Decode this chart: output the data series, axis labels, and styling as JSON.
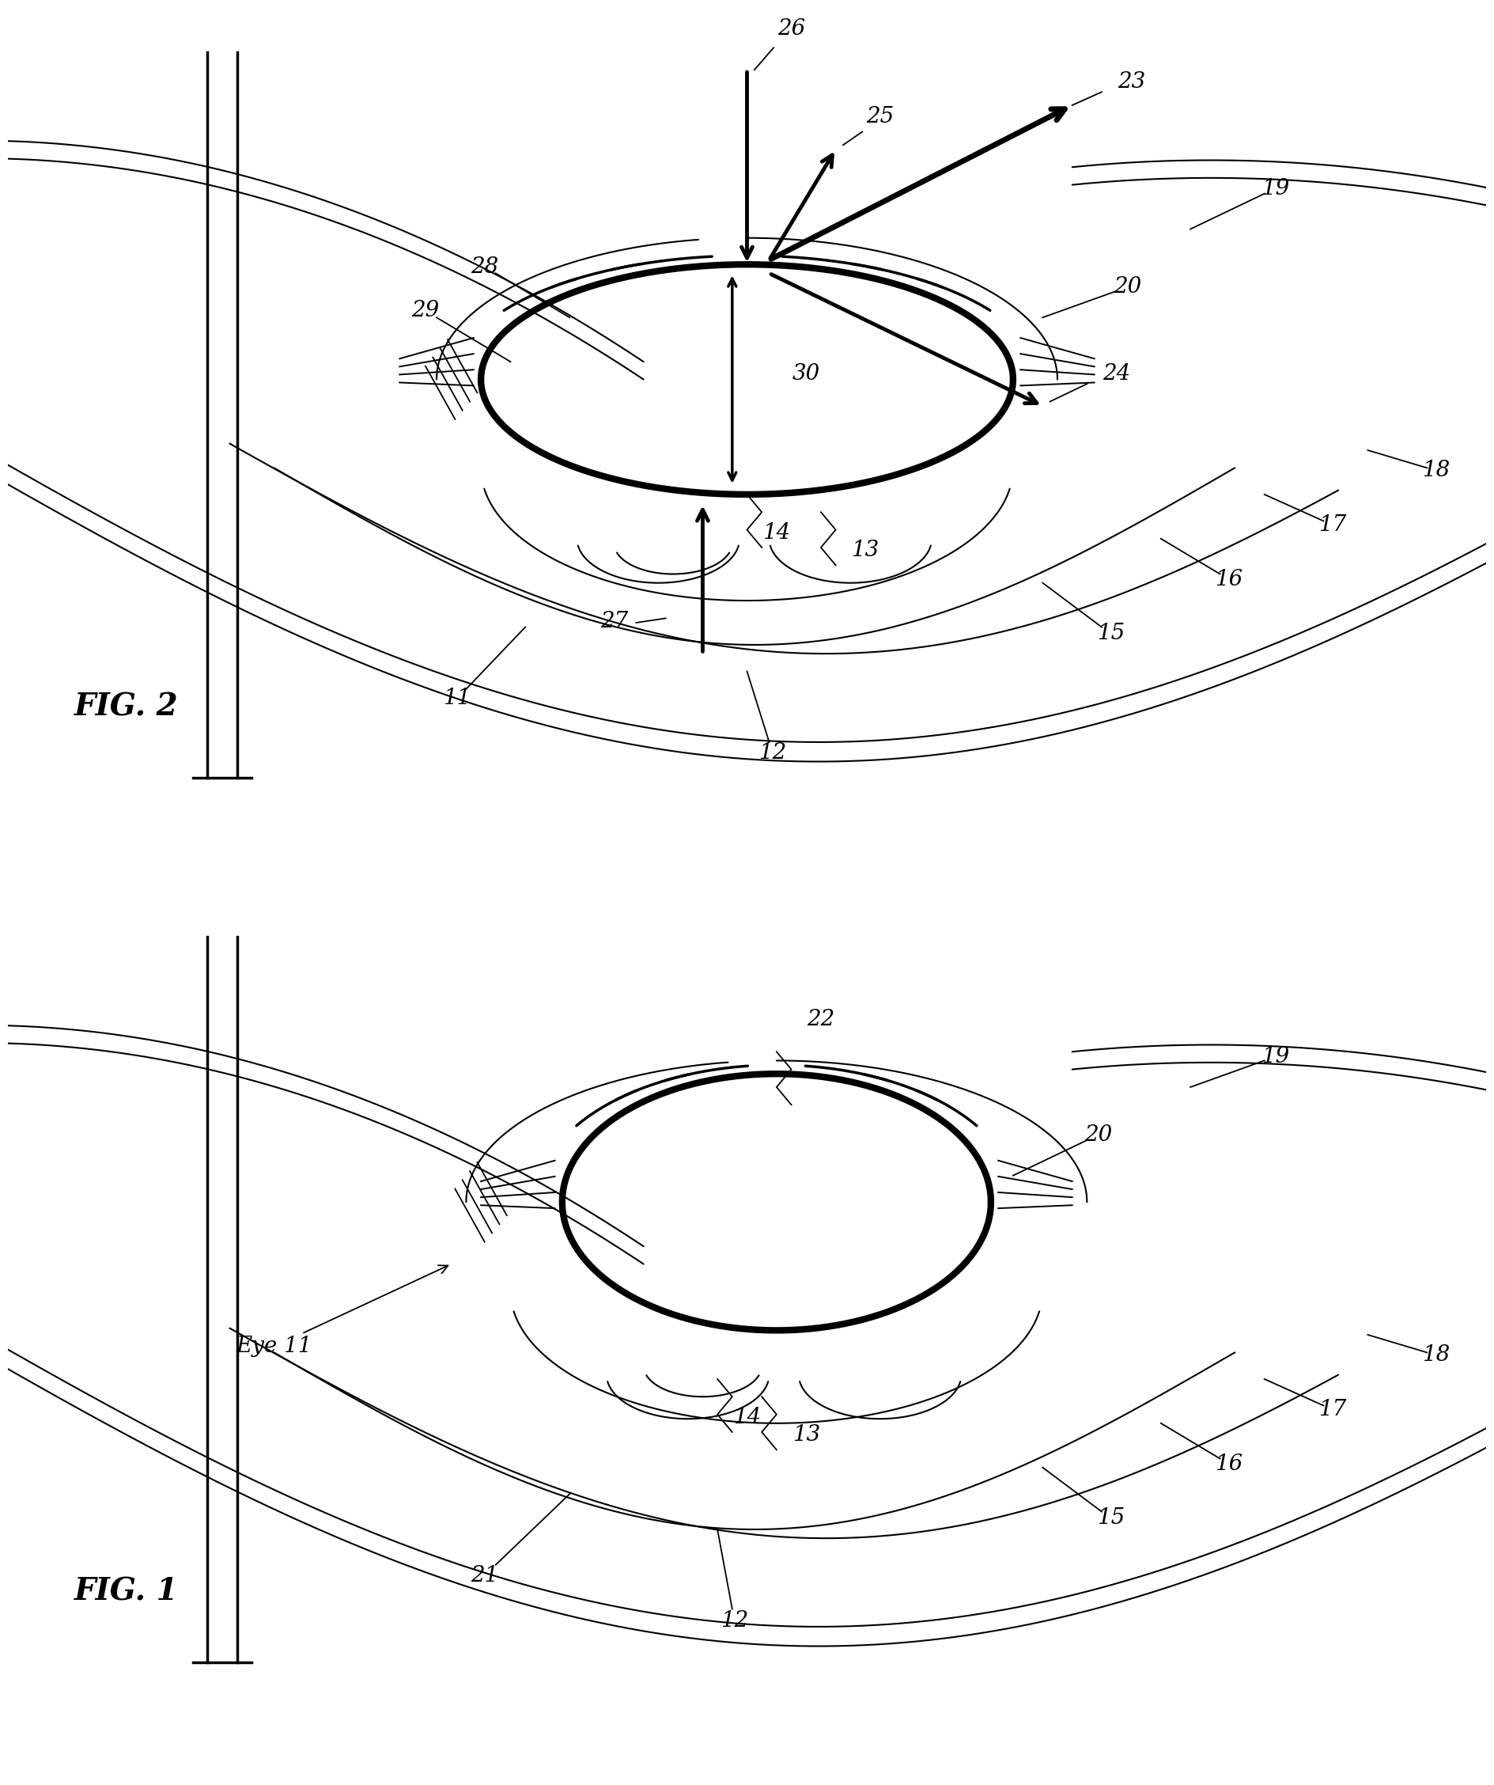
{
  "bg_color": "#ffffff",
  "line_color": "#000000",
  "fig_width": 18.69,
  "fig_height": 22.36,
  "fig1_label": "FIG. 1",
  "fig2_label": "FIG. 2",
  "thin_lw": 1.5,
  "medium_lw": 2.5,
  "thick_lw": 6.0,
  "arrow_lw": 3.5,
  "label_fontsize": 20,
  "figlabel_fontsize": 28
}
